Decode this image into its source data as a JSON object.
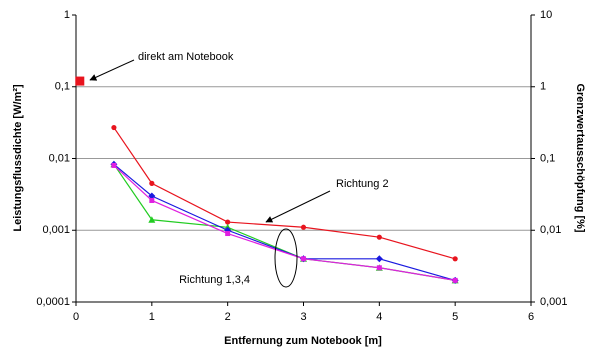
{
  "chart_data": {
    "type": "line",
    "xlabel": "Entfernung zum Notebook [m]",
    "ylabel": "Leistungsflussdichte [W/m²]",
    "y2label": "Grenzwertausschöpfung [%]",
    "xlim": [
      0,
      6
    ],
    "xticks": [
      0,
      1,
      2,
      3,
      4,
      5,
      6
    ],
    "ylim": [
      0.0001,
      1
    ],
    "ylog": true,
    "yticks": [
      {
        "value": 0.0001,
        "label": "0,0001"
      },
      {
        "value": 0.001,
        "label": "0,001"
      },
      {
        "value": 0.01,
        "label": "0,01"
      },
      {
        "value": 0.1,
        "label": "0,1"
      },
      1
    ],
    "y2lim": [
      0.001,
      10
    ],
    "y2ticks": [
      {
        "value": 0.001,
        "label": "0,001"
      },
      {
        "value": 0.01,
        "label": "0,01"
      },
      {
        "value": 0.1,
        "label": "0,1"
      },
      1,
      10
    ],
    "grid": true,
    "series": [
      {
        "color": "#e8141e",
        "marker": "circle",
        "x": [
          0.5,
          1,
          2,
          3,
          4,
          5
        ],
        "values": [
          0.027,
          0.0045,
          0.0013,
          0.0011,
          0.0008,
          0.0004
        ]
      },
      {
        "color": "#22cc22",
        "marker": "triangle",
        "x": [
          0.5,
          1,
          2,
          3,
          4,
          5
        ],
        "values": [
          0.0083,
          0.0014,
          0.0011,
          0.0004,
          0.0003,
          0.0002
        ]
      },
      {
        "color": "#1a1adf",
        "marker": "diamond",
        "x": [
          0.5,
          1,
          2,
          3,
          4,
          5
        ],
        "values": [
          0.0083,
          0.003,
          0.001,
          0.0004,
          0.0004,
          0.0002
        ]
      },
      {
        "color": "#e020e0",
        "marker": "square",
        "x": [
          0.5,
          1,
          2,
          3,
          4,
          5
        ],
        "values": [
          0.008,
          0.0026,
          0.0009,
          0.0004,
          0.0003,
          0.0002
        ]
      },
      {
        "color": "#e8141e",
        "marker": "bigsquare",
        "x": [
          0.05
        ],
        "values": [
          0.12
        ]
      }
    ],
    "annotations": [
      "direkt am Notebook",
      "Richtung 2",
      "Richtung 1,3,4"
    ]
  }
}
